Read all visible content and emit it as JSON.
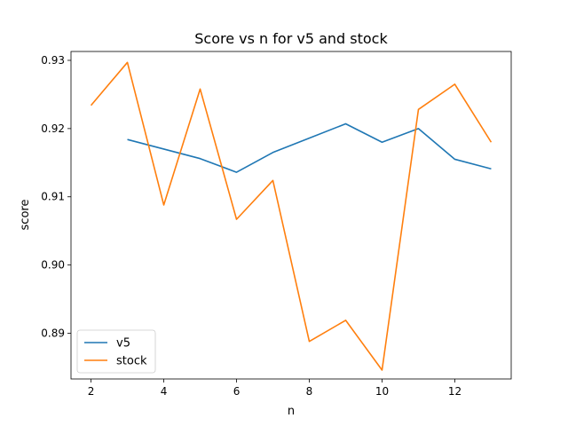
{
  "chart_data": {
    "type": "line",
    "title": "Score vs n for v5 and stock",
    "xlabel": "n",
    "ylabel": "score",
    "xlim": [
      1.45,
      13.55
    ],
    "ylim": [
      0.8833,
      0.9313
    ],
    "xticks": [
      2,
      4,
      6,
      8,
      10,
      12
    ],
    "yticks": [
      0.89,
      0.9,
      0.91,
      0.92,
      0.93
    ],
    "ytick_labels": [
      "0.89",
      "0.90",
      "0.91",
      "0.92",
      "0.93"
    ],
    "grid": false,
    "legend_position": "lower-left",
    "series": [
      {
        "name": "v5",
        "color": "#1f77b4",
        "x": [
          3,
          4,
          5,
          6,
          7,
          8,
          9,
          10,
          11,
          12,
          13
        ],
        "y": [
          0.9184,
          0.917,
          0.9156,
          0.9136,
          0.9165,
          0.9186,
          0.9207,
          0.918,
          0.92,
          0.9155,
          0.9141
        ]
      },
      {
        "name": "stock",
        "color": "#ff7f0e",
        "x": [
          2,
          3,
          4,
          5,
          6,
          7,
          8,
          9,
          10,
          11,
          12,
          13
        ],
        "y": [
          0.9234,
          0.9297,
          0.9088,
          0.9258,
          0.9067,
          0.9124,
          0.8888,
          0.8919,
          0.8846,
          0.9228,
          0.9265,
          0.918
        ]
      }
    ]
  }
}
